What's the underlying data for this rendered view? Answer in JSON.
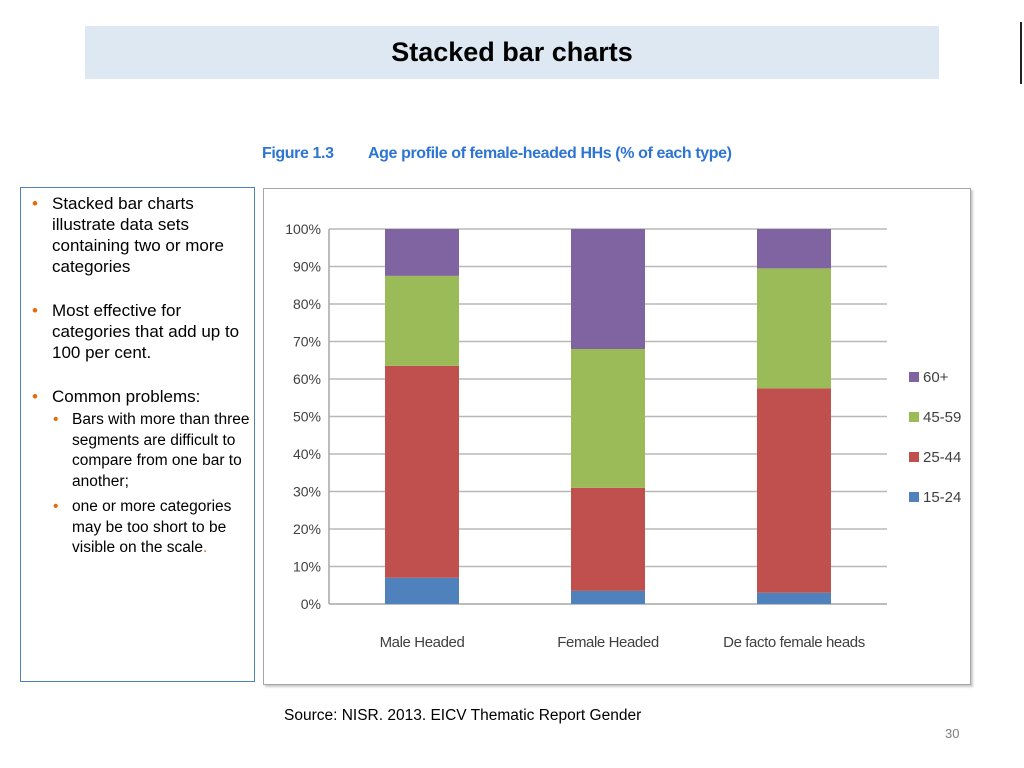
{
  "slide": {
    "title": "Stacked bar charts",
    "figure_number": "Figure 1.3",
    "figure_title": "Age profile of female-headed HHs (% of each type)",
    "source": "Source: NISR. 2013. EICV Thematic Report Gender",
    "page_number": "30"
  },
  "bullets": {
    "item1": "Stacked bar charts illustrate data sets containing two or more categories",
    "item2": "Most effective for categories that add up to 100 per cent.",
    "item3": "Common problems:",
    "sub1": "Bars with more than  three segments are difficult to compare from one bar to another;",
    "sub2": "one or more categories may be too short to be visible on the scale",
    "sub2_end": "."
  },
  "colors": {
    "title_bar_bg": "#dde8f2",
    "caption": "#2e75d3",
    "bullet": "#e46c0a",
    "box_border": "#4f81bd"
  },
  "chart_data": {
    "type": "bar",
    "stacked": true,
    "categories": [
      "Male Headed",
      "Female Headed",
      "De facto female heads"
    ],
    "series": [
      {
        "name": "15-24",
        "color": "#4f81bd",
        "values": [
          7,
          3.5,
          3
        ]
      },
      {
        "name": "25-44",
        "color": "#c0504d",
        "values": [
          56.5,
          27.5,
          54.5
        ]
      },
      {
        "name": "45-59",
        "color": "#9bbb59",
        "values": [
          24,
          37,
          32
        ]
      },
      {
        "name": "60+",
        "color": "#8064a2",
        "values": [
          12.5,
          32,
          10.5
        ]
      }
    ],
    "ylim": [
      0,
      100
    ],
    "yticks": [
      "0%",
      "10%",
      "20%",
      "30%",
      "40%",
      "50%",
      "60%",
      "70%",
      "80%",
      "90%",
      "100%"
    ],
    "grid": true,
    "legend_position": "right"
  }
}
